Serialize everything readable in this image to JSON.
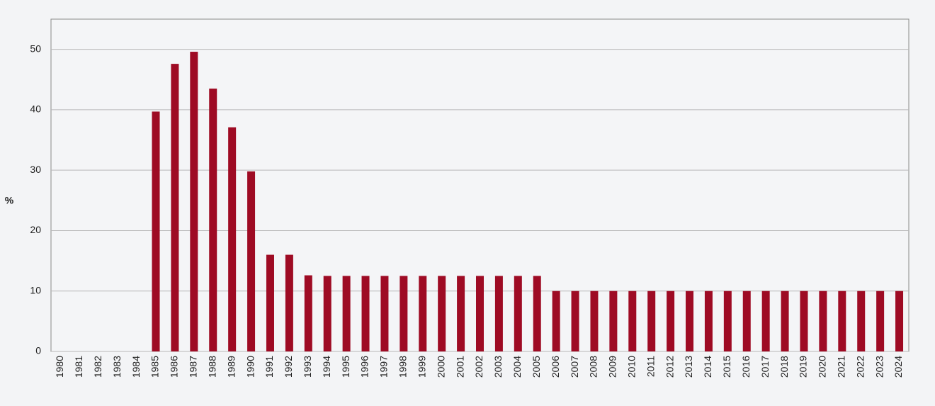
{
  "chart_data": {
    "type": "bar",
    "y_label": "%",
    "categories": [
      "1980",
      "1981",
      "1982",
      "1983",
      "1984",
      "1985",
      "1986",
      "1987",
      "1988",
      "1989",
      "1990",
      "1991",
      "1992",
      "1993",
      "1994",
      "1995",
      "1996",
      "1997",
      "1998",
      "1999",
      "2000",
      "2001",
      "2002",
      "2003",
      "2004",
      "2005",
      "2006",
      "2007",
      "2008",
      "2009",
      "2010",
      "2011",
      "2012",
      "2013",
      "2014",
      "2015",
      "2016",
      "2017",
      "2018",
      "2019",
      "2020",
      "2021",
      "2022",
      "2023",
      "2024"
    ],
    "values": [
      null,
      null,
      null,
      null,
      null,
      39.7,
      47.6,
      49.6,
      43.5,
      37.1,
      29.8,
      16,
      16,
      12.6,
      12.5,
      12.5,
      12.5,
      12.5,
      12.5,
      12.5,
      12.5,
      12.5,
      12.5,
      12.5,
      12.5,
      12.5,
      10,
      10,
      10,
      10,
      10,
      10,
      10,
      10,
      10,
      10,
      10,
      10,
      10,
      10,
      10,
      10,
      10,
      10,
      10
    ],
    "color": "#9e0b24",
    "ylim": [
      0,
      55
    ],
    "yticks": [
      0,
      10,
      20,
      30,
      40,
      50
    ],
    "grid": true
  }
}
